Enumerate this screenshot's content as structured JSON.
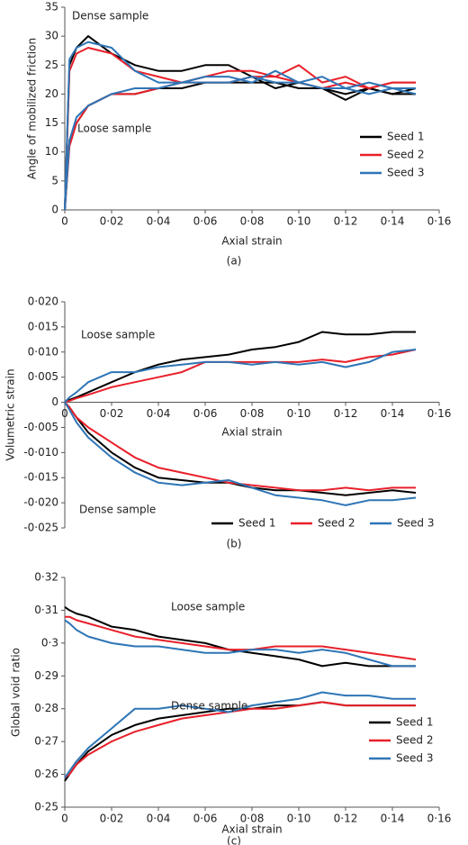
{
  "chart_data": [
    {
      "type": "line",
      "panel": "(a)",
      "x_label": "Axial strain",
      "y_label": "Angle of mobilized friction",
      "annotations": {
        "dense": "Dense sample",
        "loose": "Loose sample"
      },
      "legend": "lower right",
      "x": [
        0,
        0.002,
        0.005,
        0.01,
        0.02,
        0.03,
        0.04,
        0.05,
        0.06,
        0.07,
        0.08,
        0.09,
        0.1,
        0.11,
        0.12,
        0.13,
        0.14,
        0.15
      ],
      "xlim": [
        0,
        0.16
      ],
      "xticks": [
        0,
        {
          "value": 0.02,
          "label": "0·02"
        },
        {
          "value": 0.04,
          "label": "0·04"
        },
        {
          "value": 0.06,
          "label": "0·06"
        },
        {
          "value": 0.08,
          "label": "0·08"
        },
        {
          "value": 0.1,
          "label": "0·10"
        },
        {
          "value": 0.12,
          "label": "0·12"
        },
        {
          "value": 0.14,
          "label": "0·14"
        },
        {
          "value": 0.16,
          "label": "0·16"
        }
      ],
      "ylim": [
        0,
        35
      ],
      "yticks": [
        0,
        5,
        10,
        15,
        20,
        25,
        30,
        35
      ],
      "series": [
        {
          "name": "Seed 1",
          "color": "#000000",
          "dense": [
            0,
            25,
            28,
            30,
            27,
            25,
            24,
            24,
            25,
            25,
            23,
            21,
            22,
            21,
            19,
            21,
            20,
            20
          ],
          "loose": [
            0,
            12,
            15,
            18,
            20,
            20,
            21,
            21,
            22,
            22,
            22,
            22,
            21,
            21,
            20,
            21,
            20,
            21
          ]
        },
        {
          "name": "Seed 2",
          "color": "#e8202a",
          "dense": [
            0,
            24,
            27,
            28,
            27,
            24,
            23,
            22,
            23,
            24,
            24,
            23,
            25,
            22,
            23,
            21,
            22,
            22
          ],
          "loose": [
            0,
            11,
            15,
            18,
            20,
            20,
            21,
            22,
            22,
            22,
            23,
            23,
            22,
            21,
            22,
            21,
            22,
            22
          ]
        },
        {
          "name": "Seed 3",
          "color": "#2e75b6",
          "dense": [
            0,
            26,
            28,
            29,
            28,
            24,
            22,
            22,
            23,
            23,
            22,
            24,
            22,
            23,
            21,
            22,
            21,
            20
          ],
          "loose": [
            0,
            12,
            16,
            18,
            20,
            21,
            21,
            22,
            22,
            22,
            23,
            22,
            22,
            21,
            21,
            20,
            21,
            21
          ]
        }
      ]
    },
    {
      "type": "line",
      "panel": "(b)",
      "x_label": "Axial strain",
      "y_label": "Volumetric strain",
      "annotations": {
        "dense": "Dense sample",
        "loose": "Loose sample"
      },
      "legend": "lower center",
      "x": [
        0,
        0.002,
        0.005,
        0.01,
        0.02,
        0.03,
        0.04,
        0.05,
        0.06,
        0.07,
        0.08,
        0.09,
        0.1,
        0.11,
        0.12,
        0.13,
        0.14,
        0.15
      ],
      "xlim": [
        0,
        0.16
      ],
      "xticks": [
        0,
        {
          "value": 0.02,
          "label": "0·02"
        },
        {
          "value": 0.04,
          "label": "0·04"
        },
        {
          "value": 0.06,
          "label": "0·06"
        },
        {
          "value": 0.08,
          "label": "0·08"
        },
        {
          "value": 0.1,
          "label": "0·10"
        },
        {
          "value": 0.12,
          "label": "0·12"
        },
        {
          "value": 0.14,
          "label": "0·14"
        },
        {
          "value": 0.16,
          "label": "0·16"
        }
      ],
      "ylim": [
        -0.025,
        0.02
      ],
      "yticks": [
        {
          "value": -0.025,
          "label": "-0·025"
        },
        {
          "value": -0.02,
          "label": "-0·020"
        },
        {
          "value": -0.015,
          "label": "-0·015"
        },
        {
          "value": -0.01,
          "label": "-0·010"
        },
        {
          "value": -0.005,
          "label": "-0·005"
        },
        0,
        {
          "value": 0.005,
          "label": "0·005"
        },
        {
          "value": 0.01,
          "label": "0·010"
        },
        {
          "value": 0.015,
          "label": "0·015"
        },
        {
          "value": 0.02,
          "label": "0·020"
        }
      ],
      "series": [
        {
          "name": "Seed 1",
          "color": "#000000",
          "dense": [
            0,
            -0.001,
            -0.003,
            -0.006,
            -0.01,
            -0.013,
            -0.015,
            -0.0155,
            -0.016,
            -0.016,
            -0.017,
            -0.0175,
            -0.0175,
            -0.018,
            -0.0185,
            -0.018,
            -0.0175,
            -0.018
          ],
          "loose": [
            0,
            0.0005,
            0.001,
            0.002,
            0.004,
            0.006,
            0.0075,
            0.0085,
            0.009,
            0.0095,
            0.0105,
            0.011,
            0.012,
            0.014,
            0.0135,
            0.0135,
            0.014,
            0.014
          ]
        },
        {
          "name": "Seed 2",
          "color": "#e8202a",
          "dense": [
            0,
            -0.001,
            -0.003,
            -0.005,
            -0.008,
            -0.011,
            -0.013,
            -0.014,
            -0.015,
            -0.016,
            -0.0165,
            -0.017,
            -0.0175,
            -0.0175,
            -0.017,
            -0.0175,
            -0.017,
            -0.017
          ],
          "loose": [
            0,
            0.0003,
            0.0008,
            0.0015,
            0.003,
            0.004,
            0.005,
            0.006,
            0.008,
            0.008,
            0.008,
            0.008,
            0.008,
            0.0085,
            0.008,
            0.009,
            0.0095,
            0.0105
          ]
        },
        {
          "name": "Seed 3",
          "color": "#2e75b6",
          "dense": [
            0,
            -0.0015,
            -0.004,
            -0.007,
            -0.011,
            -0.014,
            -0.016,
            -0.0165,
            -0.016,
            -0.0155,
            -0.017,
            -0.0185,
            -0.019,
            -0.0195,
            -0.0205,
            -0.0195,
            -0.0195,
            -0.019
          ],
          "loose": [
            0,
            0.001,
            0.002,
            0.004,
            0.006,
            0.006,
            0.007,
            0.0075,
            0.008,
            0.008,
            0.0075,
            0.008,
            0.0075,
            0.008,
            0.007,
            0.008,
            0.01,
            0.0105
          ]
        }
      ]
    },
    {
      "type": "line",
      "panel": "(c)",
      "x_label": "Axial strain",
      "y_label": "Global void ratio",
      "annotations": {
        "dense": "Dense sample",
        "loose": "Loose sample"
      },
      "legend": "lower right",
      "x": [
        0,
        0.002,
        0.005,
        0.01,
        0.02,
        0.03,
        0.04,
        0.05,
        0.06,
        0.07,
        0.08,
        0.09,
        0.1,
        0.11,
        0.12,
        0.13,
        0.14,
        0.15
      ],
      "xlim": [
        0,
        0.16
      ],
      "xticks": [
        0,
        {
          "value": 0.02,
          "label": "0·02"
        },
        {
          "value": 0.04,
          "label": "0·04"
        },
        {
          "value": 0.06,
          "label": "0·06"
        },
        {
          "value": 0.08,
          "label": "0·08"
        },
        {
          "value": 0.1,
          "label": "0·10"
        },
        {
          "value": 0.12,
          "label": "0·12"
        },
        {
          "value": 0.14,
          "label": "0·14"
        },
        {
          "value": 0.16,
          "label": "0·16"
        }
      ],
      "ylim": [
        0.25,
        0.32
      ],
      "yticks": [
        {
          "value": 0.25,
          "label": "0·25"
        },
        {
          "value": 0.26,
          "label": "0·26"
        },
        {
          "value": 0.27,
          "label": "0·27"
        },
        {
          "value": 0.28,
          "label": "0·28"
        },
        {
          "value": 0.29,
          "label": "0·29"
        },
        {
          "value": 0.3,
          "label": "0·3"
        },
        {
          "value": 0.31,
          "label": "0·31"
        },
        {
          "value": 0.32,
          "label": "0·32"
        }
      ],
      "series": [
        {
          "name": "Seed 1",
          "color": "#000000",
          "dense": [
            0.258,
            0.26,
            0.263,
            0.267,
            0.272,
            0.275,
            0.277,
            0.278,
            0.279,
            0.28,
            0.28,
            0.281,
            0.281,
            0.282,
            0.281,
            0.281,
            0.281,
            0.281
          ],
          "loose": [
            0.311,
            0.31,
            0.309,
            0.308,
            0.305,
            0.304,
            0.302,
            0.301,
            0.3,
            0.298,
            0.297,
            0.296,
            0.295,
            0.293,
            0.294,
            0.293,
            0.293,
            0.293
          ]
        },
        {
          "name": "Seed 2",
          "color": "#e8202a",
          "dense": [
            0.259,
            0.26,
            0.263,
            0.266,
            0.27,
            0.273,
            0.275,
            0.277,
            0.278,
            0.279,
            0.28,
            0.28,
            0.281,
            0.282,
            0.281,
            0.281,
            0.281,
            0.281
          ],
          "loose": [
            0.308,
            0.308,
            0.307,
            0.306,
            0.304,
            0.302,
            0.301,
            0.3,
            0.299,
            0.298,
            0.298,
            0.299,
            0.299,
            0.299,
            0.298,
            0.297,
            0.296,
            0.295
          ]
        },
        {
          "name": "Seed 3",
          "color": "#2e75b6",
          "dense": [
            0.259,
            0.261,
            0.264,
            0.268,
            0.274,
            0.28,
            0.28,
            0.281,
            0.28,
            0.279,
            0.281,
            0.282,
            0.283,
            0.285,
            0.284,
            0.284,
            0.283,
            0.283
          ],
          "loose": [
            0.307,
            0.306,
            0.304,
            0.302,
            0.3,
            0.299,
            0.299,
            0.298,
            0.297,
            0.297,
            0.298,
            0.298,
            0.297,
            0.298,
            0.297,
            0.295,
            0.293,
            0.293
          ]
        }
      ]
    }
  ]
}
